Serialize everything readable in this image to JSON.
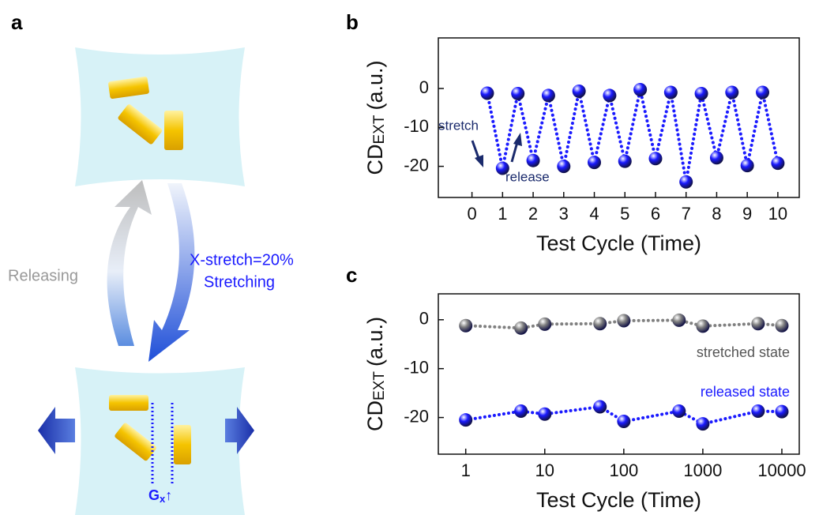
{
  "figure": {
    "panel_labels": [
      "a",
      "b",
      "c"
    ]
  },
  "diagram": {
    "left_label": "Releasing",
    "right_label_1": "X-stretch=20%",
    "right_label_2": "Stretching",
    "gap_label": "G",
    "gap_sub": "x",
    "gap_arrow": "↑"
  },
  "chart_data": [
    {
      "type": "line",
      "xlabel": "Test Cycle (Time)",
      "ylabel": "CD",
      "ylabel_sub": "EXT",
      "ylabel_unit": "(a.u.)",
      "x": [
        0.5,
        1,
        1.5,
        2,
        2.5,
        3,
        3.5,
        4,
        4.5,
        5,
        5.5,
        6,
        6.5,
        7,
        7.5,
        8,
        8.5,
        9,
        9.5,
        10
      ],
      "series": [
        {
          "color": "#1a1aff",
          "values": [
            -1.2,
            -20.5,
            -1.3,
            -18.5,
            -1.8,
            -20,
            -0.7,
            -19,
            -1.8,
            -18.7,
            -0.3,
            -18,
            -1,
            -24,
            -1.3,
            -17.8,
            -1,
            -19.8,
            -1,
            -19.2
          ]
        }
      ],
      "annotations": [
        "stretch",
        "release"
      ],
      "xlim": [
        -1.1,
        10.7
      ],
      "xticks": [
        0,
        1,
        2,
        3,
        4,
        5,
        6,
        7,
        8,
        9,
        10
      ],
      "ylim": [
        -28,
        13
      ],
      "yticks": [
        -20,
        -10,
        0
      ]
    },
    {
      "type": "line",
      "xlabel": "Test Cycle (Time)",
      "ylabel": "CD",
      "ylabel_sub": "EXT",
      "ylabel_unit": "(a.u.)",
      "xscale": "log",
      "x": [
        1,
        5,
        10,
        50,
        100,
        500,
        1000,
        5000,
        10000
      ],
      "series": [
        {
          "name": "stretched state",
          "color": "#808080",
          "values": [
            -1.2,
            -1.7,
            -0.9,
            -0.8,
            -0.2,
            -0.1,
            -1.3,
            -0.8,
            -1.2
          ]
        },
        {
          "name": "released state",
          "color": "#1a1aff",
          "values": [
            -20.5,
            -18.7,
            -19.3,
            -17.8,
            -20.8,
            -18.7,
            -21.3,
            -18.7,
            -18.8
          ]
        }
      ],
      "xlim": [
        0.45,
        16600
      ],
      "xticks": [
        1,
        10,
        100,
        1000,
        10000
      ],
      "ylim": [
        -27.5,
        5.3
      ],
      "yticks": [
        -20,
        -10,
        0
      ]
    }
  ]
}
